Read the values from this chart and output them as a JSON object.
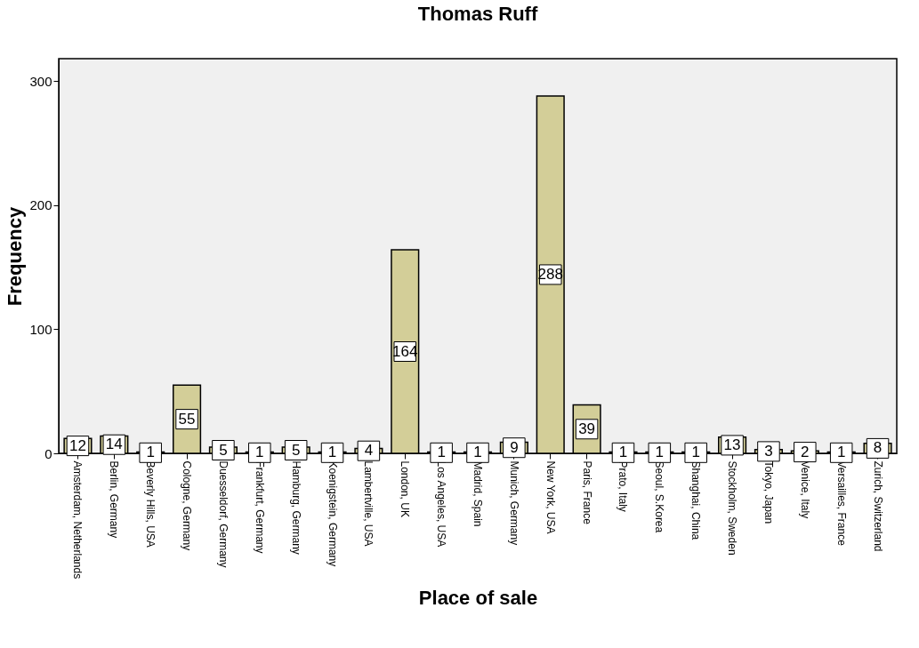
{
  "chart_data": {
    "type": "bar",
    "title": "Thomas Ruff",
    "xlabel": "Place of sale",
    "ylabel": "Frequency",
    "categories": [
      "Amsterdam, Netherlands",
      "Berlin, Germany",
      "Beverly Hills, USA",
      "Cologne, Germany",
      "Duesseldorf, Germany",
      "Frankfurt, Germany",
      "Hamburg, Germany",
      "Koenigstein, Germany",
      "Lambertville, USA",
      "London, UK",
      "Los Angeles, USA",
      "Madrid, Spain",
      "Munich, Germany",
      "New York, USA",
      "Paris, France",
      "Prato, Italy",
      "Seoul, S.Korea",
      "Shanghai, China",
      "Stockholm, Sweden",
      "Tokyo, Japan",
      "Venice, Italy",
      "Versailles, France",
      "Zurich, Switzerland"
    ],
    "values": [
      12,
      14,
      1,
      55,
      5,
      1,
      5,
      1,
      4,
      164,
      1,
      1,
      9,
      288,
      39,
      1,
      1,
      1,
      13,
      3,
      2,
      1,
      8
    ],
    "color": "#d3ce98",
    "ylim": [
      0,
      318
    ],
    "yticks": [
      0,
      100,
      200,
      300
    ],
    "data_labels": true
  }
}
